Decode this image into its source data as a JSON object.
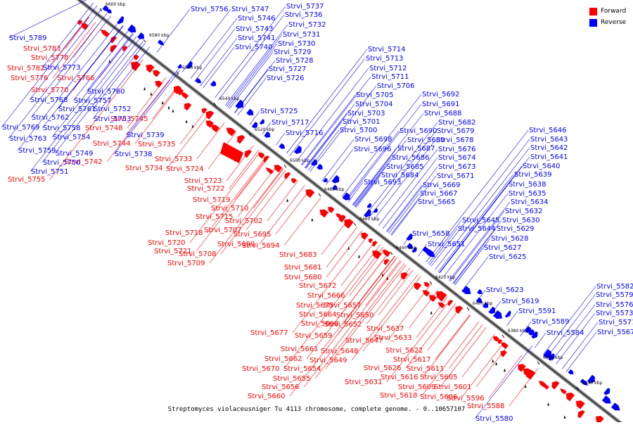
{
  "legend": {
    "forward_label": "Forward",
    "reverse_label": "Reverse",
    "forward_color": "#ff0000",
    "reverse_color": "#0000ff"
  },
  "caption": "Streptomyces violaceusniger Tu 4113 chromosome, complete genome. - 0..10657107",
  "axis": {
    "ticks": [
      "6600 kbp",
      "6580 kbp",
      "6560 kbp",
      "6540 kbp",
      "6520 kbp",
      "6500 kbp",
      "6480 kbp",
      "6460 kbp",
      "6440 kbp",
      "6420 kbp",
      "6400 kbp",
      "6380 kbp",
      "6360 kbp",
      "6340 kbp"
    ]
  },
  "labels": {
    "forward": [
      "Strvi_5783",
      "Strvi_5778",
      "Strvi_5782",
      "Strvi_5776",
      "Strvi_5766",
      "Strvi_5770",
      "Strvi_5745",
      "Strvi_5748",
      "Strvi_5744",
      "Strvi_5735",
      "Strvi_5742",
      "Strvi_5734",
      "Strvi_5733",
      "Strvi_5724",
      "Strvi_5755",
      "Strvi_5723",
      "Strvi_5722",
      "Strvi_5719",
      "Strvi_5710",
      "Strvi_5715",
      "Strvi_5702",
      "Strvi_5707",
      "Strvi_5718",
      "Strvi_5695",
      "Strvi_5699",
      "Strvi_5720",
      "Strvi_5694",
      "Strvi_5721",
      "Strvi_5708",
      "Strvi_5709",
      "Strvi_5683",
      "Strvi_5681",
      "Strvi_5680",
      "Strvi_5672",
      "Strvi_5666",
      "Strvi_5675",
      "Strvi_5657",
      "Strvi_5664",
      "Strvi_5650",
      "Strvi_5668",
      "Strvi_5652",
      "Strvi_5677",
      "Strvi_5659",
      "Strvi_5637",
      "Strvi_5633",
      "Strvi_5647",
      "Strvi_5661",
      "Strvi_5648",
      "Strvi_5622",
      "Strvi_5662",
      "Strvi_5649",
      "Strvi_5617",
      "Strvi_5670",
      "Strvi_5654",
      "Strvi_5626",
      "Strvi_5611",
      "Strvi_5655",
      "Strvi_5616",
      "Strvi_5605",
      "Strvi_5631",
      "Strvi_5609",
      "Strvi_5601",
      "Strvi_5656",
      "Strvi_5618",
      "Strvi_5606",
      "Strvi_5596",
      "Strvi_5660",
      "Strvi_5588"
    ],
    "reverse": [
      "Strvi_5756",
      "Strvi_5747",
      "Strvi_5737",
      "Strvi_5746",
      "Strvi_5736",
      "Strvi_5732",
      "Strvi_5789",
      "Strvi_5743",
      "Strvi_5731",
      "Strvi_5741",
      "Strvi_5730",
      "Strvi_5740",
      "Strvi_5729",
      "Strvi_5773",
      "Strvi_5728",
      "Strvi_5727",
      "Strvi_5726",
      "Strvi_5768",
      "Strvi_5760",
      "Strvi_5757",
      "Strvi_5761",
      "Strvi_5752",
      "Strvi_5762",
      "Strvi_5753",
      "Strvi_5769",
      "Strvi_5758",
      "Strvi_5763",
      "Strvi_5754",
      "Strvi_5739",
      "Strvi_5759",
      "Strvi_5749",
      "Strvi_5738",
      "Strvi_5750",
      "Strvi_5751",
      "Strvi_5714",
      "Strvi_5713",
      "Strvi_5712",
      "Strvi_5711",
      "Strvi_5706",
      "Strvi_5705",
      "Strvi_5704",
      "Strvi_5703",
      "Strvi_5725",
      "Strvi_5717",
      "Strvi_5700",
      "Strvi_5716",
      "Strvi_5701",
      "Strvi_5698",
      "Strvi_5696",
      "Strvi_5692",
      "Strvi_5691",
      "Strvi_5688",
      "Strvi_5682",
      "Strvi_5690",
      "Strvi_5679",
      "Strvi_5689",
      "Strvi_5678",
      "Strvi_5687",
      "Strvi_5676",
      "Strvi_5686",
      "Strvi_5674",
      "Strvi_5685",
      "Strvi_5673",
      "Strvi_5684",
      "Strvi_5671",
      "Strvi_5693",
      "Strvi_5669",
      "Strvi_5667",
      "Strvi_5665",
      "Strvi_5646",
      "Strvi_5643",
      "Strvi_5642",
      "Strvi_5641",
      "Strvi_5640",
      "Strvi_5639",
      "Strvi_5638",
      "Strvi_5635",
      "Strvi_5634",
      "Strvi_5632",
      "Strvi_5645",
      "Strvi_5630",
      "Strvi_5644",
      "Strvi_5629",
      "Strvi_5658",
      "Strvi_5628",
      "Strvi_5651",
      "Strvi_5627",
      "Strvi_5625",
      "Strvi_5623",
      "Strvi_5619",
      "Strvi_5591",
      "Strvi_5589",
      "Strvi_5584",
      "Strvi_5582",
      "Strvi_5579",
      "Strvi_5576",
      "Strvi_5573",
      "Strvi_5571",
      "Strvi_5567",
      "Strvi_5580"
    ]
  }
}
